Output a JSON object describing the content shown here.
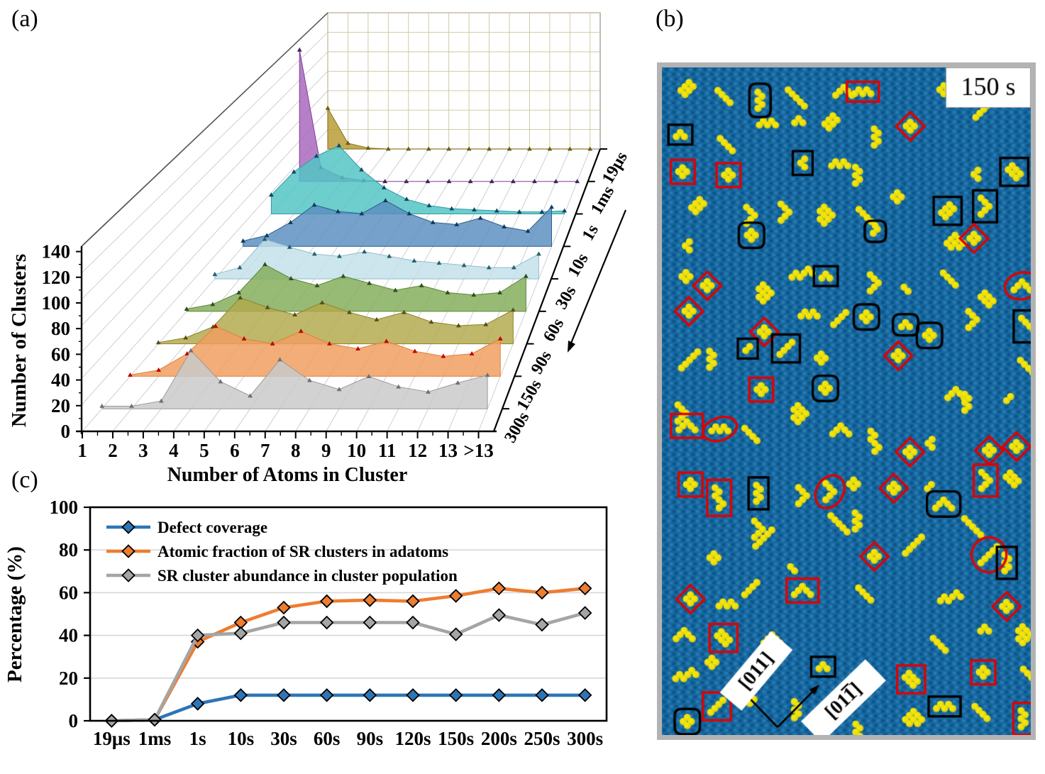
{
  "figure": {
    "panel_a_label": "(a)",
    "panel_b_label": "(b)",
    "panel_c_label": "(c)"
  },
  "chart_data": [
    {
      "id": "panel_a",
      "type": "area",
      "projection": "3d-waterfall",
      "xlabel": "Number of Atoms in Cluster",
      "ylabel": "Number of Clusters",
      "x_categories": [
        "1",
        "2",
        "3",
        "4",
        "5",
        "6",
        "7",
        "8",
        "9",
        "10",
        "11",
        "12",
        "13",
        ">13"
      ],
      "y_ticks": [
        0,
        20,
        40,
        60,
        80,
        100,
        120,
        140
      ],
      "ylim": [
        0,
        140
      ],
      "grid": true,
      "depth_axis": {
        "labels_back_to_front": [
          "19μs",
          "1ms",
          "1s",
          "10s",
          "30s",
          "60s",
          "90s",
          "150s",
          "300s"
        ],
        "arrow_direction": "toward-front"
      },
      "series": [
        {
          "name": "19μs",
          "fill": "#b99b35",
          "stroke": "#8a7418",
          "marker": "#6e5e12",
          "values": [
            42,
            6,
            1,
            0,
            0,
            0,
            0,
            0,
            0,
            0,
            0,
            0,
            0,
            0
          ]
        },
        {
          "name": "1ms",
          "fill": "#a868bd",
          "stroke": "#7d3f94",
          "marker": "#45215c",
          "values": [
            130,
            14,
            4,
            1,
            0,
            0,
            0,
            0,
            0,
            0,
            0,
            0,
            0,
            0
          ]
        },
        {
          "name": "1s",
          "fill": "#52c5c5",
          "stroke": "#2d9aa0",
          "marker": "#14466b",
          "values": [
            18,
            40,
            55,
            65,
            42,
            25,
            14,
            8,
            5,
            4,
            3,
            2,
            2,
            3
          ]
        },
        {
          "name": "10s",
          "fill": "#5a8fc0",
          "stroke": "#2a5e8e",
          "marker": "#123a5e",
          "values": [
            5,
            10,
            22,
            38,
            32,
            30,
            42,
            30,
            22,
            20,
            26,
            18,
            14,
            36
          ]
        },
        {
          "name": "30s",
          "fill": "#c3e0e8",
          "stroke": "#8fbfcd",
          "marker": "#26606e",
          "values": [
            4,
            10,
            35,
            28,
            22,
            20,
            24,
            20,
            16,
            14,
            12,
            10,
            10,
            22
          ]
        },
        {
          "name": "60s",
          "fill": "#83ad5a",
          "stroke": "#5d8738",
          "marker": "#2f4f1e",
          "values": [
            2,
            6,
            16,
            40,
            28,
            22,
            30,
            24,
            18,
            22,
            16,
            14,
            16,
            30
          ]
        },
        {
          "name": "90s",
          "fill": "#b3a94c",
          "stroke": "#8d8428",
          "marker": "#55501a",
          "values": [
            1,
            5,
            14,
            38,
            30,
            24,
            34,
            26,
            20,
            26,
            18,
            15,
            16,
            28
          ]
        },
        {
          "name": "150s",
          "fill": "#ef9d5f",
          "stroke": "#e0813c",
          "marker": "#c00000",
          "values": [
            1,
            5,
            18,
            40,
            30,
            26,
            36,
            26,
            22,
            28,
            20,
            16,
            18,
            30
          ]
        },
        {
          "name": "300s",
          "fill": "#c9c9c9",
          "stroke": "#9a9a9a",
          "marker": "#707070",
          "values": [
            2,
            2,
            6,
            45,
            21,
            10,
            38,
            22,
            15,
            25,
            17,
            13,
            20,
            26
          ]
        }
      ]
    },
    {
      "id": "panel_c",
      "type": "line",
      "categories": [
        "19μs",
        "1ms",
        "1s",
        "10s",
        "30s",
        "60s",
        "90s",
        "120s",
        "150s",
        "200s",
        "250s",
        "300s"
      ],
      "ylabel": "Percentage (%)",
      "ylim": [
        0,
        100
      ],
      "y_ticks": [
        0,
        20,
        40,
        60,
        80,
        100
      ],
      "grid": "horizontal",
      "legend_position": "top-left-inside",
      "series": [
        {
          "name": "Defect coverage",
          "color": "#2e75b6",
          "values": [
            0,
            0.5,
            8,
            12,
            12,
            12,
            12,
            12,
            12,
            12,
            12,
            12
          ]
        },
        {
          "name": "Atomic fraction of SR clusters in adatoms",
          "color": "#ed7d31",
          "values": [
            0,
            0.5,
            37,
            46,
            53,
            56,
            56.5,
            56,
            58.5,
            62,
            60,
            62
          ]
        },
        {
          "name": "SR cluster abundance in cluster population",
          "color": "#a5a5a5",
          "values": [
            0,
            0.5,
            40,
            41,
            46,
            46,
            46,
            46,
            40.5,
            49.5,
            45,
            50.5
          ]
        }
      ]
    }
  ],
  "panel_b": {
    "time_label": "150 s",
    "direction_label_left": "[011]",
    "direction_label_right": {
      "prefix": "[01",
      "barred": "1",
      "suffix": "]"
    },
    "background_color": "#1668a1",
    "lattice_dot_dark": "#094a76",
    "lattice_dot_light": "#4894c4",
    "adatom_color": "#f2e50d",
    "annotation_red": "#e00000",
    "annotation_black": "#000000",
    "annotation_shapes": [
      "red-ellipse",
      "red-diamond",
      "red-rectangle",
      "black-rectangle",
      "black-rounded-rectangle"
    ],
    "approx_cluster_count": 122,
    "frame_color": "#b3b3b3"
  }
}
